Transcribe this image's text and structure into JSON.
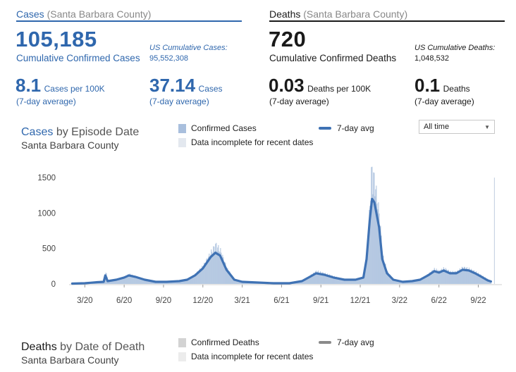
{
  "cases": {
    "header_main": "Cases",
    "header_sub": "(Santa Barbara County)",
    "total": "105,185",
    "total_label": "Cumulative Confirmed Cases",
    "us_label": "US Cumulative Cases:",
    "us_value": "95,552,308",
    "per100k_value": "8.1",
    "per100k_unit": "Cases per 100K",
    "per100k_avg": "(7-day average)",
    "daily_value": "37.14",
    "daily_unit": "Cases",
    "daily_avg": "(7-day average)"
  },
  "deaths": {
    "header_main": "Deaths",
    "header_sub": "(Santa Barbara County)",
    "total": "720",
    "total_label": "Cumulative Confirmed Deaths",
    "us_label": "US Cumulative Deaths:",
    "us_value": "1,048,532",
    "per100k_value": "0.03",
    "per100k_unit": "Deaths per 100K",
    "per100k_avg": "(7-day average)",
    "daily_value": "0.1",
    "daily_unit": "Deaths",
    "daily_avg": "(7-day average)"
  },
  "cases_chart": {
    "title_main": "Cases",
    "title_rest": "by Episode Date",
    "subtitle": "Santa Barbara County",
    "legend_bars": "Confirmed Cases",
    "legend_incomplete": "Data incomplete for recent dates",
    "legend_line": "7-day avg",
    "dropdown_value": "All time"
  },
  "deaths_chart": {
    "title_main": "Deaths",
    "title_rest": "by Date of Death",
    "subtitle": "Santa Barbara County",
    "legend_bars": "Confirmed Deaths",
    "legend_incomplete": "Data incomplete for recent dates",
    "legend_line": "7-day avg"
  },
  "colors": {
    "accent": "#2f67ad",
    "bar": "#a9bfdd",
    "line": "#3f72b4",
    "grey_line": "#8a8a8a",
    "grey_bar": "#d3d3d3"
  },
  "chart_data": {
    "type": "bar",
    "title": "Cases by Episode Date",
    "subtitle": "Santa Barbara County",
    "xlabel": "",
    "ylabel": "",
    "ylim": [
      0,
      1650
    ],
    "yticks": [
      0,
      500,
      1000,
      1500
    ],
    "xlim": [
      2020.1,
      2022.85
    ],
    "xticks": [
      {
        "label": "3/20",
        "x": 2020.2
      },
      {
        "label": "6/20",
        "x": 2020.45
      },
      {
        "label": "9/20",
        "x": 2020.7
      },
      {
        "label": "12/20",
        "x": 2020.95
      },
      {
        "label": "3/21",
        "x": 2021.2
      },
      {
        "label": "6/21",
        "x": 2021.45
      },
      {
        "label": "9/21",
        "x": 2021.7
      },
      {
        "label": "12/21",
        "x": 2021.95
      },
      {
        "label": "3/22",
        "x": 2022.2
      },
      {
        "label": "6/22",
        "x": 2022.45
      },
      {
        "label": "9/22",
        "x": 2022.7
      }
    ],
    "series": [
      {
        "name": "7-day avg",
        "type": "line",
        "points": [
          [
            2020.12,
            5
          ],
          [
            2020.2,
            10
          ],
          [
            2020.28,
            25
          ],
          [
            2020.32,
            30
          ],
          [
            2020.33,
            120
          ],
          [
            2020.345,
            40
          ],
          [
            2020.4,
            60
          ],
          [
            2020.45,
            90
          ],
          [
            2020.48,
            120
          ],
          [
            2020.52,
            100
          ],
          [
            2020.58,
            60
          ],
          [
            2020.65,
            30
          ],
          [
            2020.72,
            30
          ],
          [
            2020.8,
            40
          ],
          [
            2020.85,
            60
          ],
          [
            2020.9,
            120
          ],
          [
            2020.95,
            220
          ],
          [
            2021.0,
            380
          ],
          [
            2021.03,
            440
          ],
          [
            2021.06,
            400
          ],
          [
            2021.1,
            200
          ],
          [
            2021.15,
            60
          ],
          [
            2021.2,
            30
          ],
          [
            2021.3,
            20
          ],
          [
            2021.4,
            10
          ],
          [
            2021.5,
            10
          ],
          [
            2021.58,
            40
          ],
          [
            2021.63,
            100
          ],
          [
            2021.67,
            150
          ],
          [
            2021.72,
            130
          ],
          [
            2021.78,
            90
          ],
          [
            2021.85,
            60
          ],
          [
            2021.92,
            60
          ],
          [
            2021.97,
            90
          ],
          [
            2021.99,
            350
          ],
          [
            2022.01,
            900
          ],
          [
            2022.025,
            1200
          ],
          [
            2022.04,
            1150
          ],
          [
            2022.07,
            800
          ],
          [
            2022.09,
            350
          ],
          [
            2022.12,
            150
          ],
          [
            2022.16,
            60
          ],
          [
            2022.22,
            30
          ],
          [
            2022.28,
            40
          ],
          [
            2022.33,
            60
          ],
          [
            2022.38,
            120
          ],
          [
            2022.42,
            180
          ],
          [
            2022.45,
            160
          ],
          [
            2022.48,
            190
          ],
          [
            2022.52,
            150
          ],
          [
            2022.56,
            150
          ],
          [
            2022.6,
            200
          ],
          [
            2022.64,
            190
          ],
          [
            2022.68,
            150
          ],
          [
            2022.72,
            100
          ],
          [
            2022.76,
            50
          ],
          [
            2022.78,
            35
          ]
        ]
      },
      {
        "name": "Confirmed Cases",
        "type": "bar",
        "points": [
          [
            2020.12,
            5
          ],
          [
            2020.2,
            10
          ],
          [
            2020.28,
            25
          ],
          [
            2020.32,
            30
          ],
          [
            2020.33,
            180
          ],
          [
            2020.345,
            40
          ],
          [
            2020.4,
            60
          ],
          [
            2020.45,
            90
          ],
          [
            2020.48,
            130
          ],
          [
            2020.52,
            100
          ],
          [
            2020.58,
            60
          ],
          [
            2020.65,
            30
          ],
          [
            2020.72,
            30
          ],
          [
            2020.8,
            40
          ],
          [
            2020.85,
            60
          ],
          [
            2020.9,
            130
          ],
          [
            2020.95,
            240
          ],
          [
            2021.0,
            420
          ],
          [
            2021.03,
            520
          ],
          [
            2021.06,
            440
          ],
          [
            2021.1,
            210
          ],
          [
            2021.15,
            60
          ],
          [
            2021.2,
            30
          ],
          [
            2021.3,
            20
          ],
          [
            2021.4,
            10
          ],
          [
            2021.5,
            10
          ],
          [
            2021.58,
            40
          ],
          [
            2021.63,
            110
          ],
          [
            2021.67,
            170
          ],
          [
            2021.72,
            140
          ],
          [
            2021.78,
            100
          ],
          [
            2021.85,
            60
          ],
          [
            2021.92,
            60
          ],
          [
            2021.97,
            100
          ],
          [
            2021.99,
            400
          ],
          [
            2022.01,
            1100
          ],
          [
            2022.02,
            1540
          ],
          [
            2022.04,
            1350
          ],
          [
            2022.07,
            900
          ],
          [
            2022.09,
            380
          ],
          [
            2022.12,
            160
          ],
          [
            2022.16,
            60
          ],
          [
            2022.22,
            30
          ],
          [
            2022.28,
            40
          ],
          [
            2022.33,
            60
          ],
          [
            2022.38,
            130
          ],
          [
            2022.42,
            200
          ],
          [
            2022.45,
            170
          ],
          [
            2022.48,
            210
          ],
          [
            2022.52,
            160
          ],
          [
            2022.56,
            160
          ],
          [
            2022.6,
            220
          ],
          [
            2022.64,
            200
          ],
          [
            2022.68,
            160
          ],
          [
            2022.72,
            110
          ],
          [
            2022.76,
            60
          ],
          [
            2022.78,
            40
          ],
          [
            2022.8,
            1500
          ]
        ]
      }
    ]
  }
}
